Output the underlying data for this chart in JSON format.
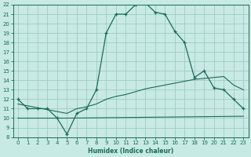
{
  "xlabel": "Humidex (Indice chaleur)",
  "xlim": [
    -0.5,
    23.5
  ],
  "ylim": [
    8,
    22
  ],
  "xticks": [
    0,
    1,
    2,
    3,
    4,
    5,
    6,
    7,
    8,
    9,
    10,
    11,
    12,
    13,
    14,
    15,
    16,
    17,
    18,
    19,
    20,
    21,
    22,
    23
  ],
  "yticks": [
    8,
    9,
    10,
    11,
    12,
    13,
    14,
    15,
    16,
    17,
    18,
    19,
    20,
    21,
    22
  ],
  "bg_color": "#c8eae4",
  "grid_color": "#9eccc4",
  "line_color": "#1a6b5a",
  "line1_x": [
    0,
    1,
    2,
    3,
    4,
    5,
    6,
    7,
    8,
    9,
    10,
    11,
    12,
    13,
    14,
    15,
    16,
    17,
    18,
    19,
    20,
    21,
    22,
    23
  ],
  "line1_y": [
    12.0,
    11.0,
    11.0,
    11.0,
    10.0,
    8.3,
    10.5,
    11.0,
    13.0,
    19.0,
    21.0,
    21.0,
    22.0,
    22.2,
    21.2,
    21.0,
    19.2,
    18.0,
    14.3,
    15.0,
    13.2,
    13.0,
    12.0,
    11.0
  ],
  "line2_x": [
    0,
    5,
    23
  ],
  "line2_y": [
    10.0,
    10.0,
    10.2
  ],
  "line3_x": [
    0,
    5,
    6,
    7,
    8,
    9,
    10,
    11,
    12,
    13,
    14,
    15,
    16,
    17,
    18,
    19,
    20,
    21,
    22,
    23
  ],
  "line3_y": [
    11.5,
    10.5,
    11.0,
    11.2,
    11.5,
    12.0,
    12.3,
    12.5,
    12.8,
    13.1,
    13.3,
    13.5,
    13.7,
    13.9,
    14.1,
    14.2,
    14.3,
    14.4,
    13.5,
    13.0
  ]
}
